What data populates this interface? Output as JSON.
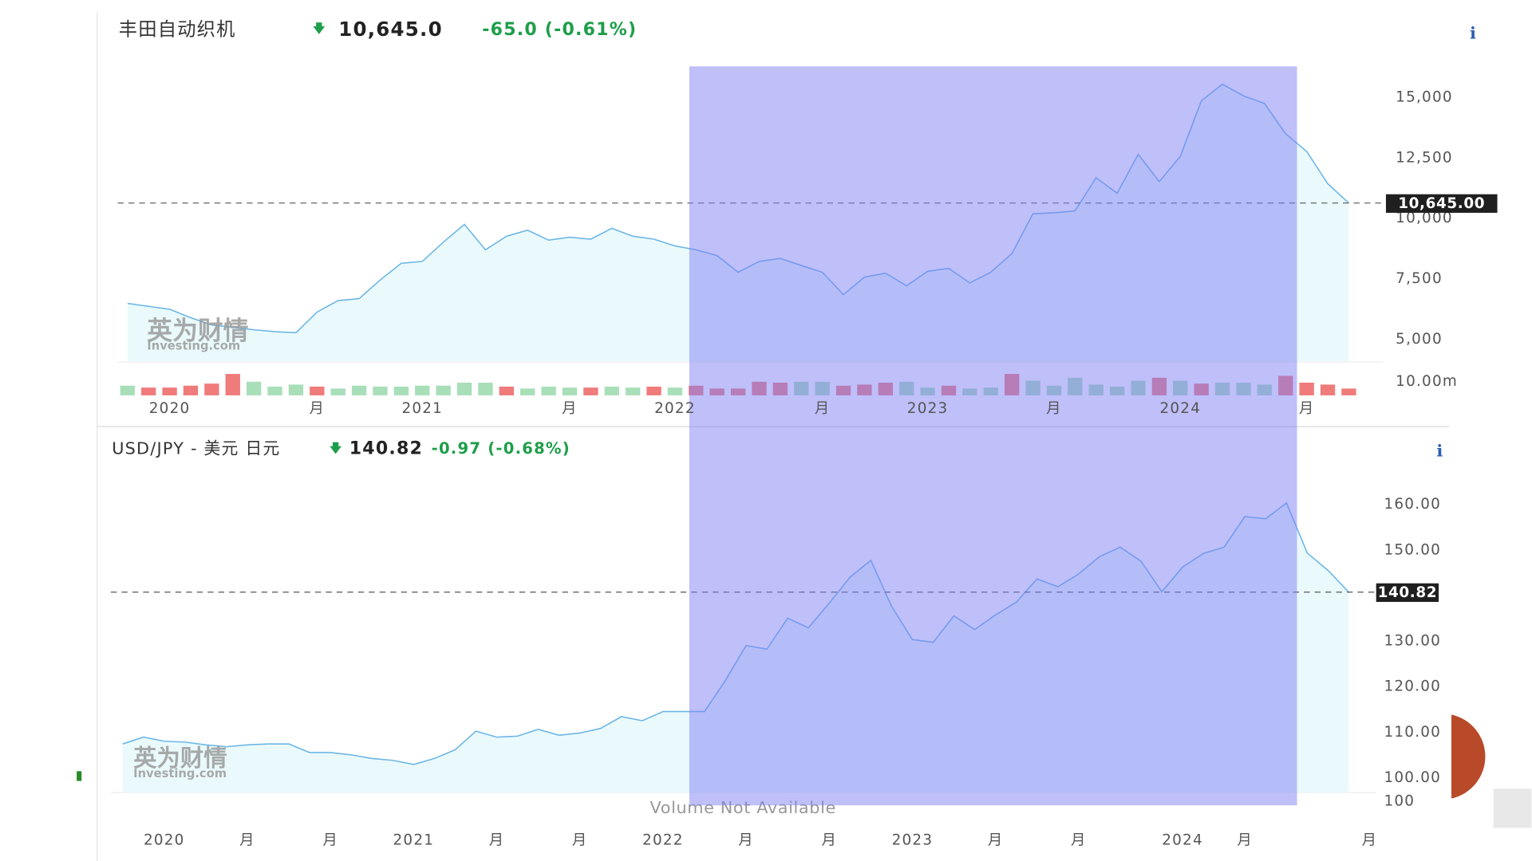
{
  "chart_data": [
    {
      "type": "line",
      "title": "丰田自动织机",
      "price": "10,645.0",
      "change": "-65.0 (-0.61%)",
      "info": "i",
      "watermark": "英为财情",
      "watermark_sub": "Investing.com",
      "color": "#6db6e6",
      "categories": [
        null,
        null,
        "2020",
        null,
        null,
        null,
        null,
        null,
        null,
        "月",
        null,
        null,
        null,
        null,
        "2021",
        null,
        null,
        null,
        null,
        null,
        null,
        "月",
        null,
        null,
        null,
        null,
        "2022",
        null,
        null,
        null,
        null,
        null,
        null,
        "月",
        null,
        null,
        null,
        null,
        "2023",
        null,
        null,
        null,
        null,
        null,
        "月",
        null,
        null,
        null,
        null,
        null,
        "2024",
        null,
        null,
        null,
        null,
        null,
        "月",
        null,
        null
      ],
      "values": [
        6490,
        6370,
        6250,
        5900,
        5600,
        5500,
        5400,
        5320,
        5280,
        6130,
        6610,
        6690,
        7460,
        8150,
        8230,
        9030,
        9760,
        8710,
        9270,
        9520,
        9110,
        9230,
        9150,
        9600,
        9270,
        9150,
        8870,
        8710,
        8470,
        7780,
        8230,
        8350,
        8060,
        7780,
        6850,
        7580,
        7740,
        7220,
        7820,
        7940,
        7340,
        7780,
        8550,
        10200,
        10240,
        10320,
        11690,
        11050,
        12660,
        11530,
        12580,
        14880,
        15560,
        15080,
        14760,
        13510,
        12780,
        11450,
        10645
      ],
      "ylim": [
        4100,
        16300
      ],
      "yticks": [
        {
          "value": 5000,
          "label": "5,000"
        },
        {
          "value": 7500,
          "label": "7,500"
        },
        {
          "value": 10000,
          "label": "10,000"
        },
        {
          "value": 12500,
          "label": "12,500"
        },
        {
          "value": 15000,
          "label": "15,000"
        }
      ],
      "current_value": {
        "value": 10645,
        "label": "10,645.00"
      },
      "volume": {
        "values": [
          7.1,
          5.7,
          5.7,
          7.1,
          8.6,
          15.7,
          10,
          6.4,
          7.9,
          6.4,
          5,
          7.1,
          6.4,
          6.4,
          7.1,
          7.1,
          9.3,
          9.3,
          6.4,
          5,
          6.4,
          5.7,
          5.7,
          6.4,
          5.7,
          6.4,
          5.7,
          7.1,
          5,
          5,
          10,
          9.3,
          10,
          10,
          7.1,
          7.9,
          9.3,
          10,
          5.7,
          7.1,
          5,
          5.7,
          15.7,
          10.7,
          7.1,
          12.9,
          7.9,
          6.4,
          10.7,
          12.9,
          10.7,
          8.6,
          9.3,
          9.3,
          7.9,
          14.3,
          9.3,
          7.9,
          5
        ],
        "colors": [
          "#a8dfb9",
          "#ef7b7b",
          "#ef7b7b",
          "#ef7b7b",
          "#ef7b7b",
          "#ef7b7b",
          "#a8dfb9",
          "#a8dfb9",
          "#a8dfb9",
          "#ef7b7b",
          "#a8dfb9",
          "#a8dfb9",
          "#a8dfb9",
          "#a8dfb9",
          "#a8dfb9",
          "#a8dfb9",
          "#a8dfb9",
          "#a8dfb9",
          "#ef7b7b",
          "#a8dfb9",
          "#a8dfb9",
          "#a8dfb9",
          "#ef7b7b",
          "#a8dfb9",
          "#a8dfb9",
          "#ef7b7b",
          "#a8dfb9",
          "#ef7b7b",
          "#ef7b7b",
          "#ef7b7b",
          "#ef7b7b",
          "#ef7b7b",
          "#a8dfb9",
          "#a8dfb9",
          "#ef7b7b",
          "#ef7b7b",
          "#ef7b7b",
          "#a8dfb9",
          "#a8dfb9",
          "#ef7b7b",
          "#a8dfb9",
          "#a8dfb9",
          "#ef7b7b",
          "#a8dfb9",
          "#a8dfb9",
          "#a8dfb9",
          "#a8dfb9",
          "#a8dfb9",
          "#a8dfb9",
          "#ef7b7b",
          "#a8dfb9",
          "#ef7b7b",
          "#a8dfb9",
          "#a8dfb9",
          "#a8dfb9",
          "#ef7b7b",
          "#ef7b7b",
          "#ef7b7b",
          "#ef7b7b"
        ],
        "ylim": [
          0,
          23.6
        ],
        "yticks": [
          {
            "value": 10,
            "label": "10.00m"
          }
        ]
      }
    },
    {
      "type": "line",
      "title": "USD/JPY - 美元 日元",
      "price": "140.82",
      "change": "-0.97 (-0.68%)",
      "info": "i",
      "watermark": "英为财情",
      "watermark_sub": "Investing.com",
      "color": "#6db6e6",
      "categories": [
        null,
        null,
        "2020",
        null,
        null,
        null,
        "月",
        null,
        null,
        null,
        "月",
        null,
        null,
        null,
        "2021",
        null,
        null,
        null,
        "月",
        null,
        null,
        null,
        "月",
        null,
        null,
        null,
        "2022",
        null,
        null,
        null,
        "月",
        null,
        null,
        null,
        "月",
        null,
        null,
        null,
        "2023",
        null,
        null,
        null,
        "月",
        null,
        null,
        null,
        "月",
        null,
        null,
        null,
        null,
        "2024",
        null,
        null,
        "月",
        null,
        null,
        null,
        null,
        null,
        "月"
      ],
      "values": [
        107.5,
        109.0,
        108.1,
        107.9,
        107.3,
        106.9,
        107.3,
        107.5,
        107.5,
        105.6,
        105.6,
        105.1,
        104.3,
        103.9,
        103.0,
        104.3,
        106.2,
        110.3,
        109.0,
        109.2,
        110.7,
        109.4,
        109.9,
        110.9,
        113.5,
        112.6,
        114.6,
        114.6,
        114.6,
        121.4,
        129.1,
        128.3,
        135.1,
        133.0,
        138.4,
        144.1,
        147.8,
        137.7,
        130.4,
        129.8,
        135.6,
        132.6,
        135.8,
        138.6,
        143.7,
        142.0,
        144.8,
        148.6,
        150.7,
        147.6,
        140.9,
        146.3,
        149.3,
        150.7,
        157.4,
        156.9,
        160.4,
        149.4,
        145.6,
        140.82,
        null
      ],
      "ylim": [
        96.8,
        165.8
      ],
      "yticks": [
        {
          "value": 100,
          "label": "100.00"
        },
        {
          "value": 110,
          "label": "110.00"
        },
        {
          "value": 120,
          "label": "120.00"
        },
        {
          "value": 130,
          "label": "130.00"
        },
        {
          "value": 150,
          "label": "150.00"
        },
        {
          "value": 160,
          "label": "160.00"
        }
      ],
      "current_value": {
        "value": 140.82,
        "label": "140.82"
      },
      "volume_note": "Volume Not Available",
      "volume_yticks": [
        100
      ]
    }
  ]
}
